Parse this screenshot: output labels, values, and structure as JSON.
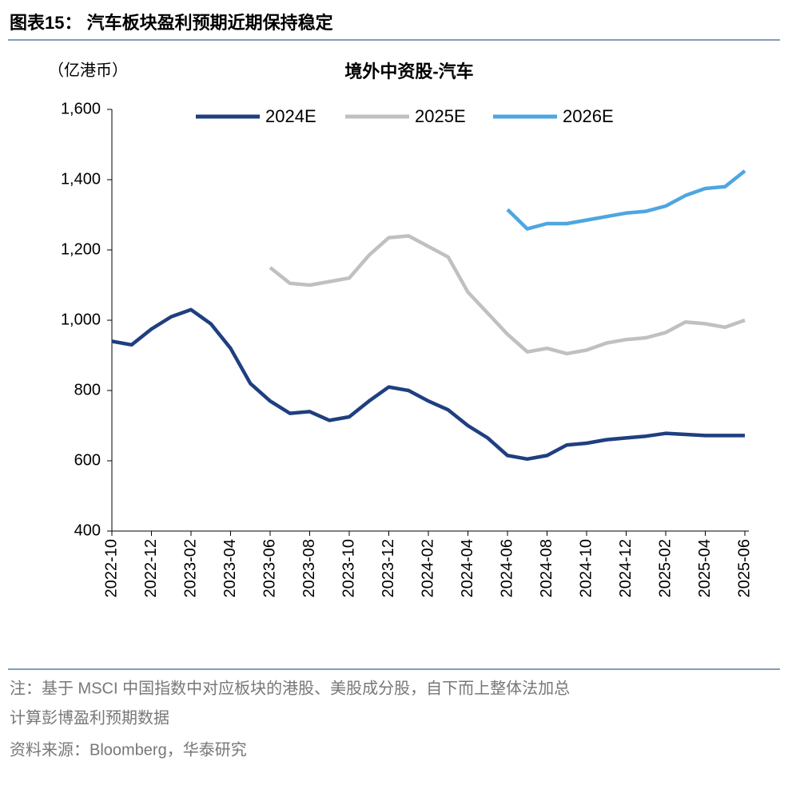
{
  "figure_title": "图表15：  汽车板块盈利预期近期保持稳定",
  "notes": [
    "注：基于 MSCI 中国指数中对应板块的港股、美股成分股，自下而上整体法加总",
    "计算彭博盈利预期数据"
  ],
  "source": "资料来源：Bloomberg，华泰研究",
  "chart_data": {
    "type": "line",
    "title": "境外中资股-汽车",
    "y_label": "（亿港币）",
    "x": [
      "2022-10",
      "2022-11",
      "2022-12",
      "2023-01",
      "2023-02",
      "2023-03",
      "2023-04",
      "2023-05",
      "2023-06",
      "2023-07",
      "2023-08",
      "2023-09",
      "2023-10",
      "2023-11",
      "2023-12",
      "2024-01",
      "2024-02",
      "2024-03",
      "2024-04",
      "2024-05",
      "2024-06",
      "2024-07",
      "2024-08",
      "2024-09",
      "2024-10",
      "2024-11",
      "2024-12",
      "2025-01",
      "2025-02",
      "2025-03",
      "2025-04",
      "2025-05",
      "2025-06"
    ],
    "series": [
      {
        "name": "2024E",
        "color": "#1f3f7f",
        "values": [
          940,
          930,
          975,
          1010,
          1030,
          990,
          920,
          820,
          770,
          735,
          740,
          715,
          725,
          770,
          810,
          800,
          770,
          745,
          700,
          665,
          615,
          605,
          615,
          645,
          650,
          660,
          665,
          670,
          678,
          675,
          672,
          672,
          672
        ]
      },
      {
        "name": "2025E",
        "color": "#c0c0c0",
        "values": [
          null,
          null,
          null,
          null,
          null,
          null,
          null,
          null,
          1150,
          1105,
          1100,
          1110,
          1120,
          1185,
          1235,
          1240,
          1210,
          1180,
          1080,
          1020,
          960,
          910,
          920,
          905,
          915,
          935,
          945,
          950,
          965,
          995,
          990,
          980,
          1000
        ]
      },
      {
        "name": "2026E",
        "color": "#4ea6e0",
        "values": [
          null,
          null,
          null,
          null,
          null,
          null,
          null,
          null,
          null,
          null,
          null,
          null,
          null,
          null,
          null,
          null,
          null,
          null,
          null,
          null,
          1315,
          1260,
          1275,
          1275,
          1285,
          1295,
          1305,
          1310,
          1325,
          1355,
          1375,
          1380,
          1425
        ]
      }
    ],
    "ylim": [
      400,
      1600
    ],
    "yticks": [
      400,
      600,
      800,
      {
        "value": 1000,
        "label": "1,000"
      },
      {
        "value": 1200,
        "label": "1,200"
      },
      {
        "value": 1400,
        "label": "1,400"
      },
      {
        "value": 1600,
        "label": "1,600"
      }
    ],
    "legend": "top"
  }
}
